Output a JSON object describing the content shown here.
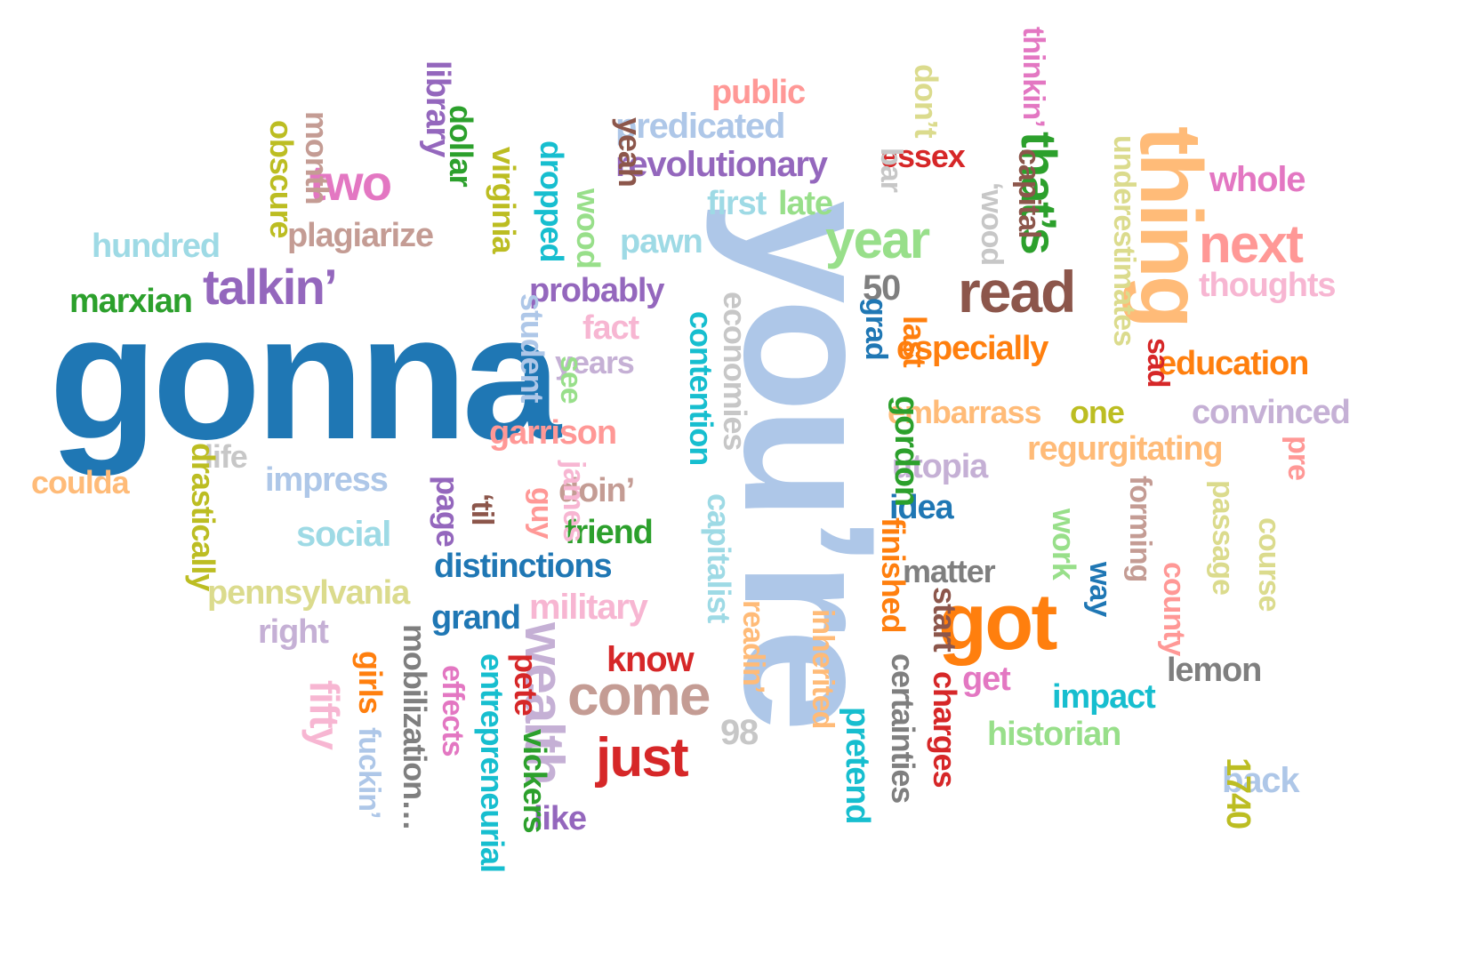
{
  "words": [
    {
      "text": "gonna",
      "color": "#1f77b4"
    },
    {
      "text": "you’re",
      "color": "#aec7e8"
    },
    {
      "text": "thing",
      "color": "#ffbb78"
    },
    {
      "text": "got",
      "color": "#ff7f0e"
    },
    {
      "text": "come",
      "color": "#c49c94"
    },
    {
      "text": "wealth",
      "color": "#c5b0d5"
    },
    {
      "text": "read",
      "color": "#8c564b"
    },
    {
      "text": "year",
      "color": "#98df8a"
    },
    {
      "text": "just",
      "color": "#d62728"
    },
    {
      "text": "next",
      "color": "#ff9896"
    },
    {
      "text": "talkin’",
      "color": "#9467bd"
    },
    {
      "text": "two",
      "color": "#e377c2"
    },
    {
      "text": "that’s",
      "color": "#2ca02c"
    },
    {
      "text": "revolutionary",
      "color": "#9467bd"
    },
    {
      "text": "predicated",
      "color": "#aec7e8"
    },
    {
      "text": "public",
      "color": "#ff9896"
    },
    {
      "text": "essex",
      "color": "#d62728"
    },
    {
      "text": "whole",
      "color": "#e377c2"
    },
    {
      "text": "thoughts",
      "color": "#f7b6d2"
    },
    {
      "text": "education",
      "color": "#ff7f0e"
    },
    {
      "text": "convinced",
      "color": "#c5b0d5"
    },
    {
      "text": "regurgitating",
      "color": "#ffbb78"
    },
    {
      "text": "embarrass",
      "color": "#ffbb78"
    },
    {
      "text": "especially",
      "color": "#ff7f0e"
    },
    {
      "text": "one",
      "color": "#bcbd22"
    },
    {
      "text": "utopia",
      "color": "#c5b0d5"
    },
    {
      "text": "idea",
      "color": "#1f77b4"
    },
    {
      "text": "matter",
      "color": "#7f7f7f"
    },
    {
      "text": "lemon",
      "color": "#7f7f7f"
    },
    {
      "text": "impact",
      "color": "#17becf"
    },
    {
      "text": "historian",
      "color": "#98df8a"
    },
    {
      "text": "back",
      "color": "#aec7e8"
    },
    {
      "text": "get",
      "color": "#e377c2"
    },
    {
      "text": "know",
      "color": "#d62728"
    },
    {
      "text": "military",
      "color": "#f7b6d2"
    },
    {
      "text": "grand",
      "color": "#1f77b4"
    },
    {
      "text": "distinctions",
      "color": "#1f77b4"
    },
    {
      "text": "friend",
      "color": "#2ca02c"
    },
    {
      "text": "doin’",
      "color": "#c49c94"
    },
    {
      "text": "garrison",
      "color": "#ff9896"
    },
    {
      "text": "years",
      "color": "#c5b0d5"
    },
    {
      "text": "fact",
      "color": "#f7b6d2"
    },
    {
      "text": "probably",
      "color": "#9467bd"
    },
    {
      "text": "pawn",
      "color": "#9edae5"
    },
    {
      "text": "first",
      "color": "#9edae5"
    },
    {
      "text": "late",
      "color": "#98df8a"
    },
    {
      "text": "marxian",
      "color": "#2ca02c"
    },
    {
      "text": "hundred",
      "color": "#9edae5"
    },
    {
      "text": "plagiarize",
      "color": "#c49c94"
    },
    {
      "text": "coulda",
      "color": "#ffbb78"
    },
    {
      "text": "life",
      "color": "#c7c7c7"
    },
    {
      "text": "impress",
      "color": "#aec7e8"
    },
    {
      "text": "social",
      "color": "#9edae5"
    },
    {
      "text": "pennsylvania",
      "color": "#dbdb8d"
    },
    {
      "text": "right",
      "color": "#c5b0d5"
    },
    {
      "text": "like",
      "color": "#9467bd"
    },
    {
      "text": "50",
      "color": "#7f7f7f"
    },
    {
      "text": "98",
      "color": "#c7c7c7"
    },
    {
      "text": "library",
      "color": "#9467bd"
    },
    {
      "text": "dollar",
      "color": "#2ca02c"
    },
    {
      "text": "month",
      "color": "#c49c94"
    },
    {
      "text": "obscure",
      "color": "#bcbd22"
    },
    {
      "text": "virginia",
      "color": "#bcbd22"
    },
    {
      "text": "dropped",
      "color": "#17becf"
    },
    {
      "text": "wood",
      "color": "#98df8a"
    },
    {
      "text": "yeah",
      "color": "#8c564b"
    },
    {
      "text": "don’t",
      "color": "#dbdb8d"
    },
    {
      "text": "bar",
      "color": "#c7c7c7"
    },
    {
      "text": "‘wood",
      "color": "#c7c7c7"
    },
    {
      "text": "thinkin’",
      "color": "#e377c2"
    },
    {
      "text": "capital",
      "color": "#8c564b"
    },
    {
      "text": "underestimates",
      "color": "#dbdb8d"
    },
    {
      "text": "student",
      "color": "#aec7e8"
    },
    {
      "text": "see",
      "color": "#98df8a"
    },
    {
      "text": "contention",
      "color": "#17becf"
    },
    {
      "text": "economies",
      "color": "#c7c7c7"
    },
    {
      "text": "grad",
      "color": "#1f77b4"
    },
    {
      "text": "last",
      "color": "#ff7f0e"
    },
    {
      "text": "sad",
      "color": "#d62728"
    },
    {
      "text": "pre",
      "color": "#ff9896"
    },
    {
      "text": "gordon",
      "color": "#2ca02c"
    },
    {
      "text": "drastically",
      "color": "#bcbd22"
    },
    {
      "text": "page",
      "color": "#9467bd"
    },
    {
      "text": "‘til",
      "color": "#8c564b"
    },
    {
      "text": "james",
      "color": "#f7b6d2"
    },
    {
      "text": "guy",
      "color": "#ff9896"
    },
    {
      "text": "capitalist",
      "color": "#9edae5"
    },
    {
      "text": "readin’",
      "color": "#ffbb78"
    },
    {
      "text": "inherited",
      "color": "#ffbb78"
    },
    {
      "text": "finished",
      "color": "#ff7f0e"
    },
    {
      "text": "start",
      "color": "#8c564b"
    },
    {
      "text": "charges",
      "color": "#d62728"
    },
    {
      "text": "certainties",
      "color": "#7f7f7f"
    },
    {
      "text": "pretend",
      "color": "#17becf"
    },
    {
      "text": "work",
      "color": "#98df8a"
    },
    {
      "text": "way",
      "color": "#1f77b4"
    },
    {
      "text": "forming",
      "color": "#c49c94"
    },
    {
      "text": "county",
      "color": "#ff9896"
    },
    {
      "text": "passage",
      "color": "#dbdb8d"
    },
    {
      "text": "course",
      "color": "#dbdb8d"
    },
    {
      "text": "1740",
      "color": "#bcbd22"
    },
    {
      "text": "fifty",
      "color": "#f7b6d2"
    },
    {
      "text": "girls",
      "color": "#ff7f0e"
    },
    {
      "text": "fuckin’",
      "color": "#aec7e8"
    },
    {
      "text": "mobilization…",
      "color": "#7f7f7f"
    },
    {
      "text": "effects",
      "color": "#e377c2"
    },
    {
      "text": "entrepreneurial",
      "color": "#17becf"
    },
    {
      "text": "pete",
      "color": "#d62728"
    },
    {
      "text": "vickers",
      "color": "#2ca02c"
    }
  ]
}
